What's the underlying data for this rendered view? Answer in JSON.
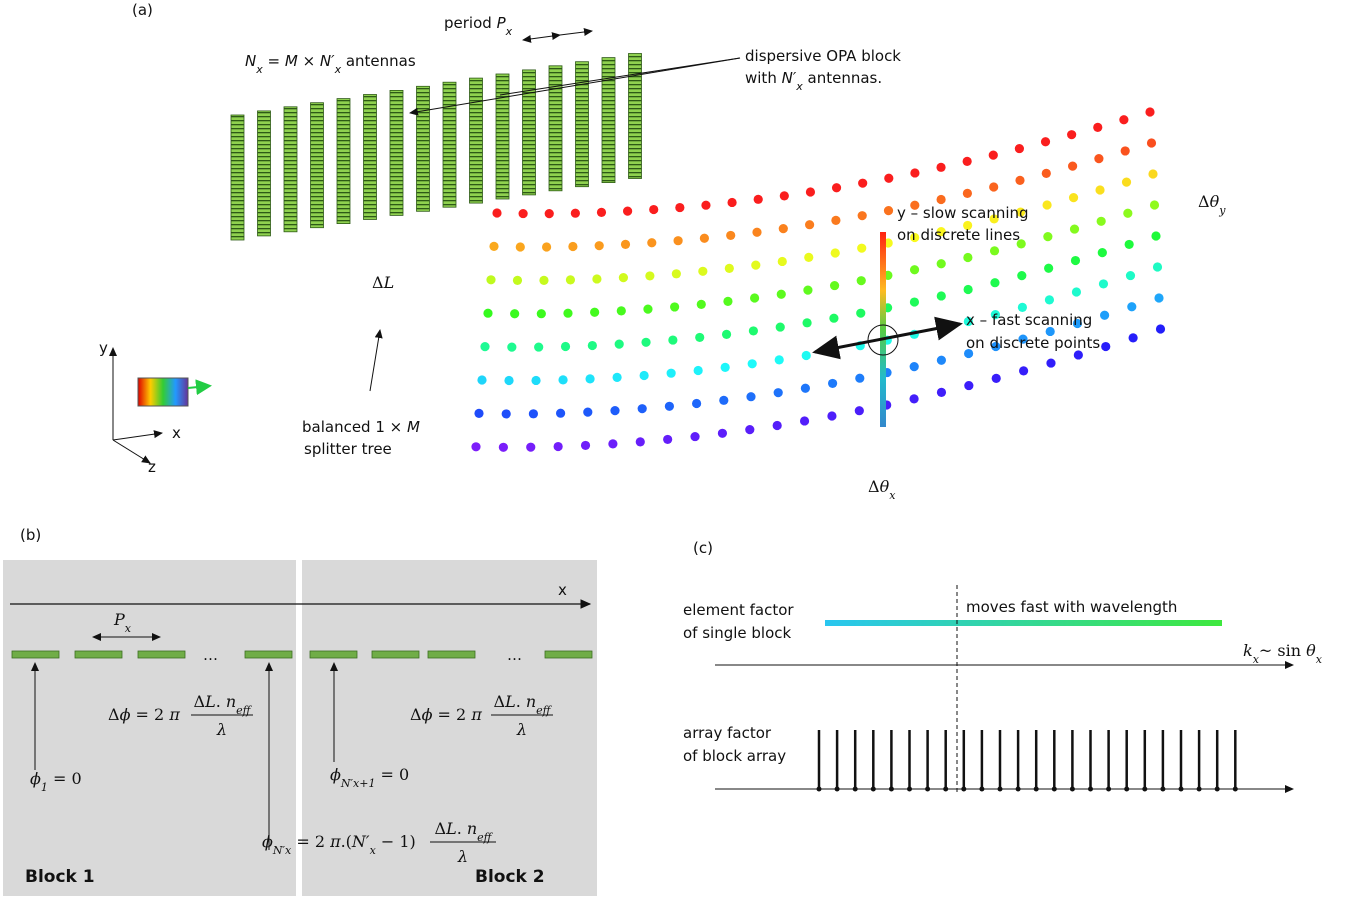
{
  "panel_a": {
    "label": [
      "(a)"
    ],
    "period": [
      "period ",
      {
        "i": "P"
      },
      {
        "sub": "x"
      }
    ],
    "antennas": [
      {
        "i": "N"
      },
      {
        "sub": "x"
      },
      " = ",
      {
        "i": "M"
      },
      " × ",
      {
        "i": "N′"
      },
      {
        "sub": "x"
      },
      " antennas"
    ],
    "opa_line1": [
      "dispersive OPA block"
    ],
    "opa_line2": [
      "with ",
      {
        "i": "N′"
      },
      {
        "sub": "x"
      },
      " antennas."
    ],
    "delta_l": [
      "Δ",
      {
        "i": "L"
      }
    ],
    "splitter_line1": [
      "balanced 1 × ",
      {
        "i": "M"
      }
    ],
    "splitter_line2": [
      "splitter tree"
    ],
    "y_scan_line1": [
      "y – slow scanning"
    ],
    "y_scan_line2": [
      "on discrete lines"
    ],
    "x_scan_line1": [
      "x – fast scanning"
    ],
    "x_scan_line2": [
      "on discrete points"
    ],
    "theta_y": [
      "Δ",
      {
        "i": "θ"
      },
      {
        "sub": "y"
      }
    ],
    "theta_x": [
      "Δ",
      {
        "i": "θ"
      },
      {
        "sub": "x"
      }
    ],
    "axis_y": [
      "y"
    ],
    "axis_x": [
      "x"
    ],
    "axis_z": [
      "z"
    ]
  },
  "panel_b": {
    "label": [
      "(b)"
    ],
    "axis_x": [
      "x"
    ],
    "period": [
      {
        "i": "P"
      },
      {
        "sub": "x"
      }
    ],
    "dots_1": [
      "…"
    ],
    "dots_2": [
      "…"
    ],
    "phase_step_1": {
      "lhs": [
        "Δ",
        {
          "i": "ϕ"
        },
        " = 2 ",
        {
          "i": "π"
        }
      ],
      "num": [
        "Δ",
        {
          "i": "L"
        },
        ". ",
        {
          "i": "n"
        },
        {
          "sub": "eff"
        }
      ],
      "den": [
        {
          "i": "λ"
        }
      ]
    },
    "phase_step_2": {
      "lhs": [
        "Δ",
        {
          "i": "ϕ"
        },
        " = 2 ",
        {
          "i": "π"
        }
      ],
      "num": [
        "Δ",
        {
          "i": "L"
        },
        ". ",
        {
          "i": "n"
        },
        {
          "sub": "eff"
        }
      ],
      "den": [
        {
          "i": "λ"
        }
      ]
    },
    "phi_1": [
      {
        "i": "ϕ"
      },
      {
        "sub": "1"
      },
      " = 0"
    ],
    "phi_next": [
      {
        "i": "ϕ"
      },
      {
        "sub": "N′x+1"
      },
      " = 0"
    ],
    "phi_last": {
      "lhs": [
        {
          "i": "ϕ"
        },
        {
          "sub": "N′x"
        },
        " = 2 ",
        {
          "i": "π"
        },
        ".(",
        {
          "i": "N′"
        },
        {
          "sub": "x"
        },
        " − 1)"
      ],
      "num": [
        "Δ",
        {
          "i": "L"
        },
        ". ",
        {
          "i": "n"
        },
        {
          "sub": "eff"
        }
      ],
      "den": [
        {
          "i": "λ"
        }
      ]
    },
    "block_1": [
      "Block 1"
    ],
    "block_2": [
      "Block 2"
    ]
  },
  "panel_c": {
    "label": [
      "(c)"
    ],
    "element_line1": [
      "element factor"
    ],
    "element_line2": [
      "of single block"
    ],
    "moves": [
      "moves fast with wavelength"
    ],
    "k_axis": [
      {
        "i": "k"
      },
      {
        "sub": "x"
      },
      "~ sin ",
      {
        "i": "θ"
      },
      {
        "sub": "x"
      }
    ],
    "array_line1": [
      "array factor"
    ],
    "array_line2": [
      "of block array"
    ]
  }
}
